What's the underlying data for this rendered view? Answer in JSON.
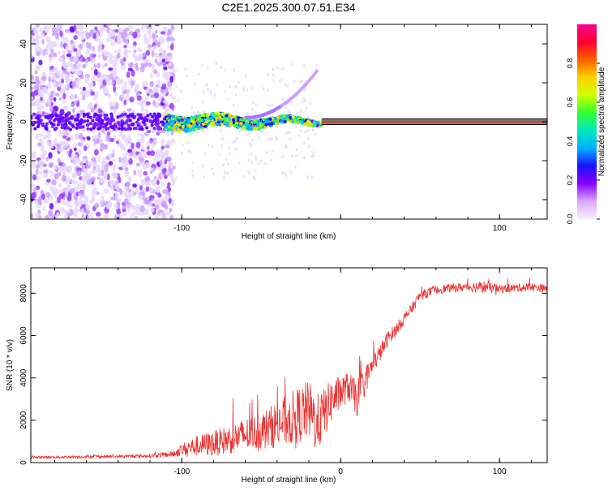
{
  "title": "C2E1.2025.300.07.51.E34",
  "colors": {
    "snr_line": "#ee3030",
    "carrier_line": "#f03040",
    "axis": "#000000"
  },
  "chart_data": [
    {
      "type": "heatmap",
      "name": "spectrogram",
      "xlabel": "Height of straight line (km)",
      "ylabel": "Frequency (Hz)",
      "xlim": [
        -195,
        130
      ],
      "ylim": [
        -50,
        50
      ],
      "x_ticks": [
        -100,
        0,
        100
      ],
      "x_tick_labels": [
        "-100",
        "",
        "100"
      ],
      "y_ticks": [
        40,
        20,
        0,
        -20,
        -40
      ],
      "y_tick_labels": [
        "40",
        "20",
        "0",
        "-20",
        "-40"
      ],
      "description_points": {
        "noise_region_x": [
          -195,
          -105
        ],
        "carrier_frequency_hz": 0,
        "strong_carrier_start_km": -12,
        "faint_sideband_peak": {
          "x": -15,
          "y": 26
        }
      },
      "colorbar": {
        "label": "Normalized spectral amplitude",
        "range": [
          0,
          1
        ],
        "ticks": [
          0.0,
          0.2,
          0.4,
          0.6,
          0.8
        ],
        "tick_labels": [
          "0.0",
          "0.2",
          "0.4",
          "0.6",
          "0.8"
        ],
        "stops": [
          "#f8f0ff",
          "#d9a8ff",
          "#8a00ff",
          "#1a10ff",
          "#00b0ff",
          "#00e8c0",
          "#30ff30",
          "#d0ff00",
          "#ffd000",
          "#ff6000",
          "#ff0030",
          "#ff0090"
        ]
      }
    },
    {
      "type": "line",
      "name": "snr",
      "xlabel": "Height of straight line (km)",
      "ylabel": "SNR (10 * v/v)",
      "xlim": [
        -195,
        130
      ],
      "ylim": [
        0,
        9200
      ],
      "x_ticks": [
        -100,
        0,
        100
      ],
      "x_tick_labels": [
        "-100",
        "0",
        "100"
      ],
      "y_ticks": [
        0,
        2000,
        4000,
        6000,
        8000
      ],
      "y_tick_labels": [
        "0",
        "2000",
        "4000",
        "6000",
        "8000"
      ],
      "series": [
        {
          "name": "SNR",
          "x": [
            -195,
            -180,
            -160,
            -140,
            -120,
            -105,
            -100,
            -90,
            -80,
            -70,
            -60,
            -50,
            -40,
            -30,
            -20,
            -15,
            -10,
            -5,
            0,
            5,
            10,
            15,
            20,
            25,
            30,
            35,
            40,
            45,
            50,
            60,
            70,
            80,
            90,
            100,
            110,
            120,
            130
          ],
          "values": [
            250,
            260,
            280,
            290,
            320,
            400,
            600,
            800,
            900,
            1100,
            1300,
            1500,
            1800,
            2100,
            2500,
            1800,
            2400,
            3000,
            3300,
            3600,
            3000,
            3800,
            4600,
            5200,
            5900,
            6300,
            6800,
            7300,
            7900,
            8150,
            8250,
            8300,
            8300,
            8200,
            8250,
            8300,
            8200
          ],
          "noise_amplitude": [
            60,
            60,
            70,
            70,
            90,
            150,
            300,
            500,
            600,
            700,
            800,
            900,
            1100,
            1300,
            1400,
            1400,
            1200,
            1000,
            800,
            700,
            900,
            700,
            500,
            400,
            350,
            300,
            280,
            250,
            250,
            200,
            200,
            220,
            300,
            200,
            200,
            200,
            200
          ]
        }
      ]
    }
  ]
}
